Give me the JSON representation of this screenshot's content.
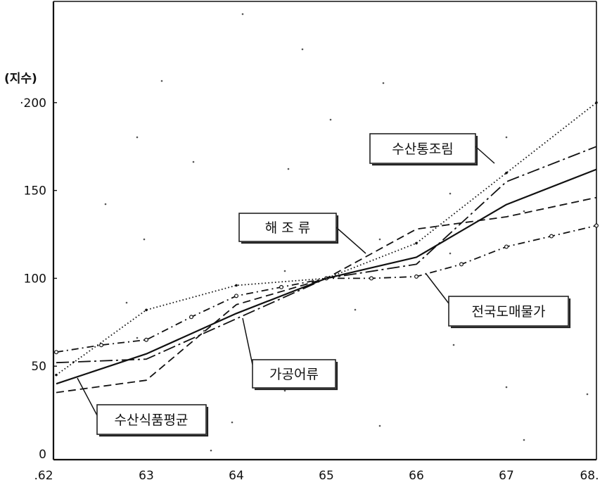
{
  "chart_data": {
    "type": "line",
    "title": "",
    "xlabel": "",
    "ylabel": "(지수)",
    "x": [
      62,
      63,
      64,
      65,
      66,
      67,
      68
    ],
    "x_tick_labels": [
      ".62",
      "63",
      "64",
      "65",
      "66",
      "67",
      "68."
    ],
    "y_ticks": [
      0,
      50,
      100,
      150,
      200
    ],
    "y_tick_labels": [
      "0",
      "50",
      "100",
      "150",
      "·200"
    ],
    "ylim": [
      0,
      250
    ],
    "xlim": [
      62,
      68
    ],
    "grid": false,
    "legend": "none (series labeled with callout boxes)",
    "series": [
      {
        "name": "수산통조림",
        "style": "dotted",
        "points": [
          [
            62,
            45
          ],
          [
            63,
            82
          ],
          [
            64,
            96
          ],
          [
            65,
            100
          ],
          [
            66,
            120
          ],
          [
            67,
            160
          ],
          [
            68,
            200
          ]
        ],
        "callout": "수산통조림"
      },
      {
        "name": "해 조 류",
        "style": "dashed",
        "points": [
          [
            62,
            35
          ],
          [
            63,
            42
          ],
          [
            64,
            85
          ],
          [
            65,
            100
          ],
          [
            66,
            128
          ],
          [
            67,
            135
          ],
          [
            68,
            146
          ]
        ],
        "callout": "해 조 류"
      },
      {
        "name": "전국도매물가",
        "style": "dash-dot-circle",
        "points": [
          [
            62,
            58
          ],
          [
            62.5,
            62
          ],
          [
            63,
            65
          ],
          [
            63.5,
            78
          ],
          [
            64,
            90
          ],
          [
            64.5,
            95
          ],
          [
            65,
            100
          ],
          [
            65.5,
            100
          ],
          [
            66,
            101
          ],
          [
            66.5,
            108
          ],
          [
            67,
            118
          ],
          [
            67.5,
            124
          ],
          [
            68,
            130
          ]
        ],
        "callout": "전국도매물가"
      },
      {
        "name": "가공어류",
        "style": "long-dash-dot",
        "points": [
          [
            62,
            52
          ],
          [
            63,
            54
          ],
          [
            64,
            77
          ],
          [
            65,
            100
          ],
          [
            66,
            108
          ],
          [
            67,
            155
          ],
          [
            68,
            175
          ]
        ],
        "callout": "가공어류"
      },
      {
        "name": "수산식품평균",
        "style": "solid",
        "points": [
          [
            62,
            40
          ],
          [
            63,
            57
          ],
          [
            64,
            80
          ],
          [
            65,
            100
          ],
          [
            66,
            112
          ],
          [
            67,
            142
          ],
          [
            68,
            162
          ]
        ],
        "callout": "수산식품평균"
      }
    ]
  }
}
